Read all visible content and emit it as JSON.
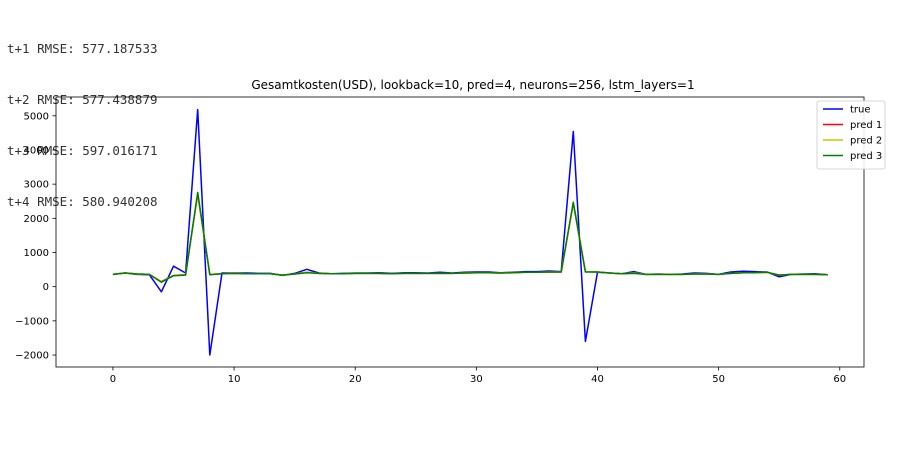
{
  "output": {
    "lines": [
      "t+1 RMSE: 577.187533",
      "t+2 RMSE: 577.438879",
      "t+3 RMSE: 597.016171",
      "t+4 RMSE: 580.940208"
    ]
  },
  "chart_data": {
    "type": "line",
    "title": "Gesamtkosten(USD), lookback=10, pred=4, neurons=256, lstm_layers=1",
    "xlabel": "",
    "ylabel": "",
    "xlim": [
      -4.7,
      62.0
    ],
    "ylim": [
      -2350,
      5550
    ],
    "xticks": [
      0,
      10,
      20,
      30,
      40,
      50,
      60
    ],
    "yticks": [
      -2000,
      -1000,
      0,
      1000,
      2000,
      3000,
      4000,
      5000
    ],
    "grid": false,
    "legend_position": "top-right",
    "x": [
      0,
      1,
      2,
      3,
      4,
      5,
      6,
      7,
      8,
      9,
      10,
      11,
      12,
      13,
      14,
      15,
      16,
      17,
      18,
      19,
      20,
      21,
      22,
      23,
      24,
      25,
      26,
      27,
      28,
      29,
      30,
      31,
      32,
      33,
      34,
      35,
      36,
      37,
      38,
      39,
      40,
      41,
      42,
      43,
      44,
      45,
      46,
      47,
      48,
      49,
      50,
      51,
      52,
      53,
      54,
      55,
      56,
      57,
      58,
      59
    ],
    "series": [
      {
        "name": "true",
        "color": "#0000ff",
        "values": [
          360,
          400,
          360,
          350,
          -150,
          600,
          400,
          5180,
          -2000,
          400,
          400,
          400,
          390,
          390,
          330,
          390,
          510,
          400,
          380,
          390,
          400,
          400,
          410,
          390,
          410,
          410,
          400,
          420,
          400,
          420,
          430,
          430,
          410,
          420,
          440,
          440,
          460,
          440,
          4540,
          -1600,
          420,
          400,
          380,
          440,
          360,
          370,
          360,
          370,
          400,
          390,
          360,
          430,
          450,
          440,
          430,
          290,
          360,
          370,
          380,
          350
        ]
      },
      {
        "name": "pred 1",
        "color": "#ff0000",
        "values": [
          360,
          400,
          370,
          360,
          150,
          330,
          350,
          2700,
          360,
          380,
          390,
          380,
          380,
          380,
          340,
          370,
          420,
          390,
          380,
          380,
          390,
          390,
          390,
          380,
          390,
          390,
          390,
          390,
          390,
          400,
          410,
          410,
          400,
          410,
          420,
          420,
          430,
          430,
          2440,
          440,
          430,
          400,
          380,
          400,
          360,
          360,
          360,
          360,
          370,
          370,
          360,
          390,
          410,
          410,
          420,
          340,
          360,
          360,
          360,
          350
        ]
      },
      {
        "name": "pred 2",
        "color": "#c8c800",
        "values": [
          360,
          400,
          370,
          360,
          140,
          330,
          350,
          2720,
          360,
          380,
          390,
          380,
          380,
          380,
          340,
          370,
          420,
          390,
          380,
          380,
          390,
          390,
          390,
          380,
          390,
          390,
          390,
          390,
          390,
          400,
          410,
          410,
          400,
          410,
          420,
          420,
          430,
          430,
          2450,
          440,
          430,
          400,
          380,
          400,
          360,
          360,
          360,
          360,
          370,
          370,
          360,
          390,
          410,
          410,
          420,
          340,
          360,
          360,
          360,
          350
        ]
      },
      {
        "name": "pred 3",
        "color": "#008000",
        "values": [
          360,
          400,
          370,
          360,
          130,
          320,
          340,
          2760,
          350,
          380,
          390,
          380,
          380,
          380,
          340,
          370,
          410,
          390,
          380,
          380,
          390,
          390,
          390,
          380,
          390,
          390,
          390,
          390,
          390,
          400,
          410,
          410,
          400,
          410,
          420,
          420,
          430,
          430,
          2470,
          430,
          430,
          400,
          380,
          390,
          360,
          360,
          360,
          360,
          370,
          370,
          360,
          390,
          410,
          410,
          420,
          340,
          360,
          360,
          360,
          350
        ]
      }
    ]
  }
}
